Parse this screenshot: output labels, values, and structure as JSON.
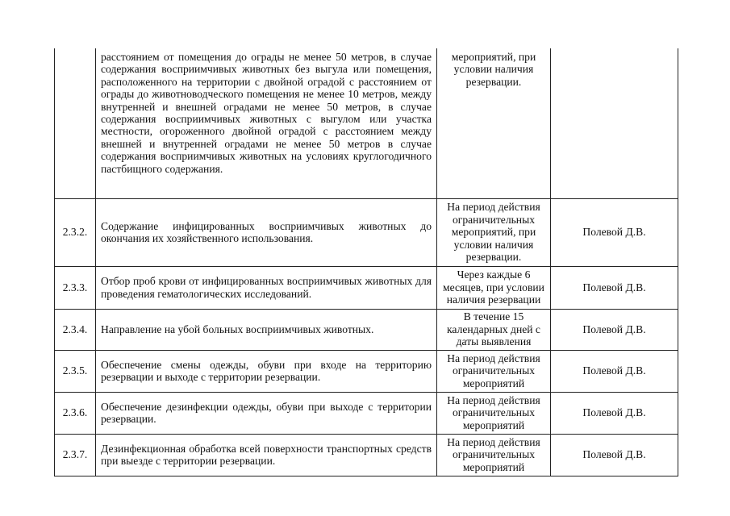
{
  "rows": [
    {
      "num": "",
      "text": "расстоянием от помещения до ограды не менее 50 метров, в случае содержания восприимчивых животных без выгула или помещения, расположенного на территории с двойной оградой с расстоянием от ограды до животноводческого помещения не менее 10 метров, между внутренней и внешней оградами не менее 50 метров, в случае содержания восприимчивых животных с выгулом или участка местности, огороженного двойной оградой с расстоянием между внешней и внутренней оградами не менее 50 метров в случае содержания восприимчивых животных на условиях круглогодичного пастбищного содержания.",
      "term": "мероприятий, при условии наличия резервации.",
      "responsible": ""
    },
    {
      "num": "2.3.2.",
      "text": "Содержание инфицированных восприимчивых животных до окончания их хозяйственного использования.",
      "term": "На период действия ограничительных мероприятий, при условии наличия резервации.",
      "responsible": "Полевой Д.В."
    },
    {
      "num": "2.3.3.",
      "text": "Отбор проб крови от инфицированных восприимчивых животных для проведения гематологических исследований.",
      "term": "Через каждые 6 месяцев, при условии наличия резервации",
      "responsible": "Полевой Д.В."
    },
    {
      "num": "2.3.4.",
      "text": "Направление на убой больных восприимчивых животных.",
      "term": "В течение 15 календарных дней с даты выявления",
      "responsible": "Полевой Д.В."
    },
    {
      "num": "2.3.5.",
      "text": "Обеспечение смены одежды, обуви при входе на территорию резервации и выходе с территории резервации.",
      "term": "На период действия ограничительных мероприятий",
      "responsible": "Полевой Д.В."
    },
    {
      "num": "2.3.6.",
      "text": "Обеспечение дезинфекции одежды, обуви при выходе с территории резервации.",
      "term": "На период действия ограничительных мероприятий",
      "responsible": "Полевой Д.В."
    },
    {
      "num": "2.3.7.",
      "text": "Дезинфекционная обработка всей поверхности транспортных средств при выезде с территории резервации.",
      "term": "На период действия ограничительных мероприятий",
      "responsible": "Полевой Д.В."
    }
  ]
}
